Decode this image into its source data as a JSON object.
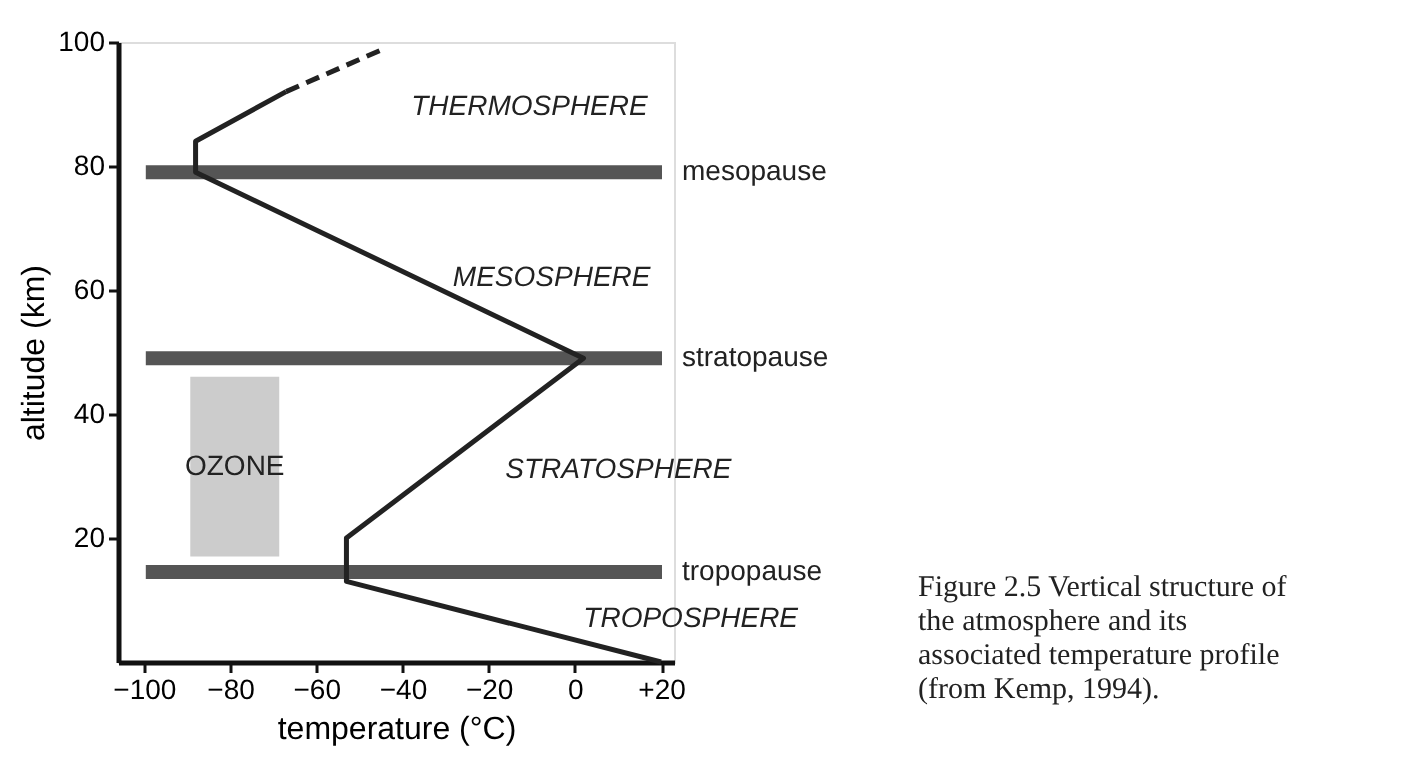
{
  "chart_data": {
    "type": "line",
    "xlabel": "temperature (°C)",
    "ylabel": "altitude (km)",
    "xlim": [
      -106,
      23
    ],
    "ylim": [
      0,
      100
    ],
    "xticks": [
      -100,
      -80,
      -60,
      -40,
      -20,
      0,
      {
        "value": 20,
        "label": "+20"
      }
    ],
    "yticks": [
      20,
      40,
      60,
      80,
      100
    ],
    "grid": false,
    "marker": "none",
    "series": [
      {
        "color": "#222222",
        "line_style": "solid",
        "x": [
          20,
          -53,
          -53,
          2,
          -88,
          -88,
          -67
        ],
        "values": [
          0,
          13,
          20,
          49,
          79,
          84,
          92
        ]
      },
      {
        "color": "#222222",
        "line_style": "dashed",
        "x": [
          -67,
          -44
        ],
        "values": [
          92,
          99
        ]
      }
    ],
    "ref_lines": [
      {
        "axis": "y",
        "value": 79,
        "label": "mesopause",
        "color": "#555555"
      },
      {
        "axis": "y",
        "value": 49,
        "label": "stratopause",
        "color": "#555555"
      },
      {
        "axis": "y",
        "value": 14.5,
        "label": "tropopause",
        "color": "#555555"
      }
    ],
    "bands": [
      {
        "axis": "y",
        "from": 17,
        "to": 46,
        "label": "OZONE",
        "color": "#cccccc"
      }
    ],
    "annotations": [
      "THERMOSPHERE",
      "MESOSPHERE",
      "STRATOSPHERE",
      "TROPOSPHERE",
      "Figure 2.5 Vertical structure of the atmosphere and its associated temperature profile (from Kemp, 1994)."
    ]
  }
}
